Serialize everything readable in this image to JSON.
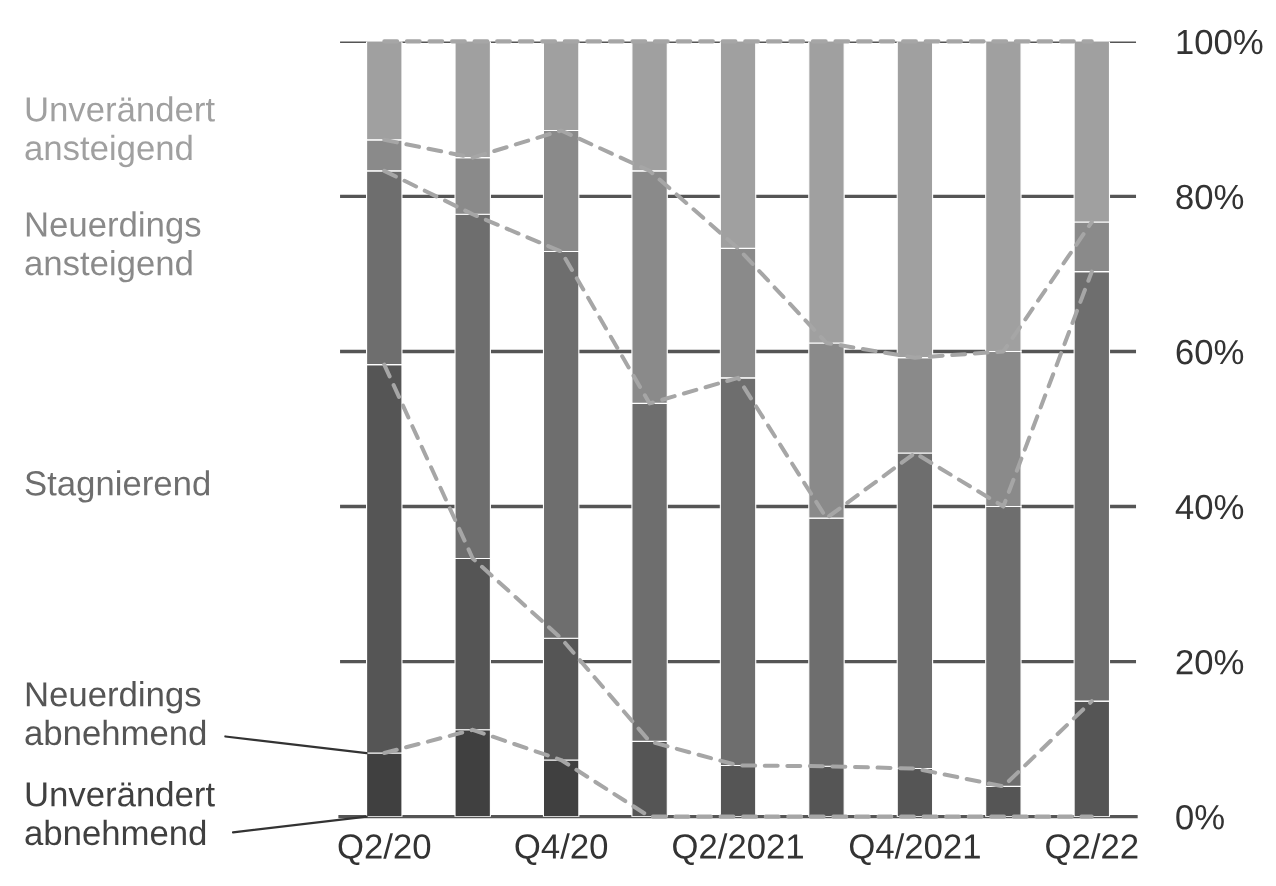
{
  "chart_data": {
    "type": "bar",
    "stacked": true,
    "categories": [
      "Q2/20",
      null,
      "Q4/20",
      null,
      "Q2/2021",
      null,
      "Q4/2021",
      null,
      "Q2/22"
    ],
    "series": [
      {
        "name": "Unverändert abnehmend",
        "color": "#404040",
        "values": [
          8.2,
          11.2,
          7.3,
          0,
          0,
          0,
          0,
          0,
          0
        ]
      },
      {
        "name": "Neuerdings abnehmend",
        "color": "#555555",
        "values": [
          50.1,
          22.1,
          15.7,
          9.7,
          6.6,
          6.5,
          6.2,
          3.9,
          14.9
        ]
      },
      {
        "name": "Stagnierend",
        "color": "#6e6e6e",
        "values": [
          25.0,
          44.4,
          49.9,
          43.6,
          50.0,
          32.0,
          40.7,
          36.1,
          55.4
        ]
      },
      {
        "name": "Neuerdings ansteigend",
        "color": "#8a8a8a",
        "values": [
          4.0,
          7.3,
          15.6,
          30.0,
          16.7,
          22.6,
          12.3,
          20.0,
          6.4
        ]
      },
      {
        "name": "Unverändert ansteigend",
        "color": "#a0a0a0",
        "values": [
          12.7,
          15.0,
          11.5,
          16.7,
          26.7,
          38.9,
          40.8,
          40.0,
          23.3
        ]
      },
      {
        "type": "line",
        "color": "#a6a6a6",
        "line_style": "dashed",
        "values": [
          8.2,
          11.2,
          7.3,
          0,
          0,
          0,
          0,
          0,
          0
        ]
      },
      {
        "type": "line",
        "color": "#a6a6a6",
        "line_style": "dashed",
        "values": [
          58.3,
          33.3,
          23.0,
          9.7,
          6.6,
          6.5,
          6.2,
          3.9,
          14.9
        ]
      },
      {
        "type": "line",
        "color": "#a6a6a6",
        "line_style": "dashed",
        "values": [
          83.3,
          77.7,
          72.9,
          53.3,
          56.6,
          38.5,
          46.9,
          40.0,
          70.3
        ]
      },
      {
        "type": "line",
        "color": "#a6a6a6",
        "line_style": "dashed",
        "values": [
          87.3,
          85.0,
          88.5,
          83.3,
          73.3,
          61.1,
          59.2,
          60.0,
          76.7
        ]
      },
      {
        "type": "line",
        "color": "#a6a6a6",
        "line_style": "dashed",
        "values": [
          100,
          100,
          100,
          100,
          100,
          100,
          100,
          100,
          100
        ]
      }
    ],
    "ylim": [
      0,
      100
    ],
    "yticks": [
      {
        "value": 0,
        "label": "0%"
      },
      {
        "value": 20,
        "label": "20%"
      },
      {
        "value": 40,
        "label": "40%"
      },
      {
        "value": 60,
        "label": "60%"
      },
      {
        "value": 80,
        "label": "80%"
      },
      {
        "value": 100,
        "label": "100%"
      }
    ],
    "grid": "y"
  }
}
